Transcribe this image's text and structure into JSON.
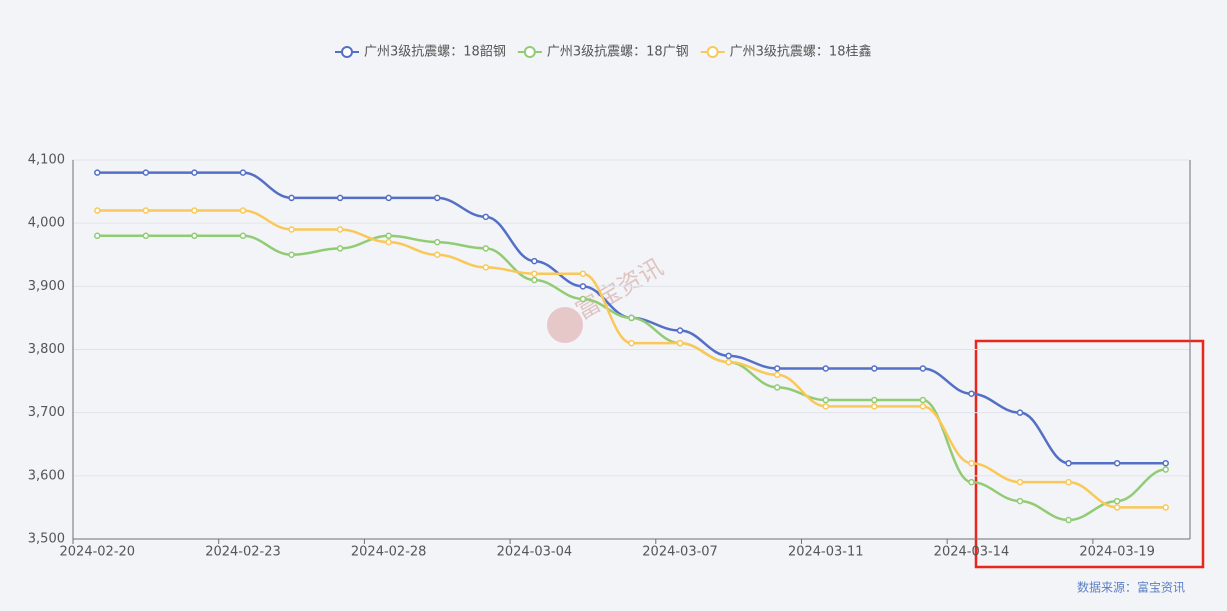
{
  "chart_data": {
    "type": "line",
    "categories": [
      "2024-02-20",
      null,
      null,
      "2024-02-23",
      null,
      null,
      "2024-02-28",
      null,
      null,
      "2024-03-04",
      null,
      null,
      "2024-03-07",
      null,
      null,
      "2024-03-11",
      null,
      null,
      "2024-03-14",
      null,
      null,
      "2024-03-19",
      null
    ],
    "series": [
      {
        "name": "广州3级抗震螺：18韶钢",
        "color": "#5470c6",
        "values": [
          4080,
          4080,
          4080,
          4080,
          4040,
          4040,
          4040,
          4040,
          4010,
          3940,
          3900,
          3850,
          3830,
          3790,
          3770,
          3770,
          3770,
          3770,
          3730,
          3700,
          3620,
          3620,
          3620
        ]
      },
      {
        "name": "广州3级抗震螺：18广钢",
        "color": "#91cc75",
        "values": [
          3980,
          3980,
          3980,
          3980,
          3950,
          3960,
          3980,
          3970,
          3960,
          3910,
          3880,
          3850,
          3810,
          3780,
          3740,
          3720,
          3720,
          3720,
          3590,
          3560,
          3530,
          3560,
          3610
        ]
      },
      {
        "name": "广州3级抗震螺：18桂鑫",
        "color": "#fac858",
        "values": [
          4020,
          4020,
          4020,
          4020,
          3990,
          3990,
          3970,
          3950,
          3930,
          3920,
          3920,
          3810,
          3810,
          3780,
          3760,
          3710,
          3710,
          3710,
          3620,
          3590,
          3590,
          3550,
          3550
        ]
      }
    ],
    "ylim": [
      3500,
      4100
    ],
    "yticks": [
      {
        "value": 3500,
        "label": "3,500"
      },
      {
        "value": 3600,
        "label": "3,600"
      },
      {
        "value": 3700,
        "label": "3,700"
      },
      {
        "value": 3800,
        "label": "3,800"
      },
      {
        "value": 3900,
        "label": "3,900"
      },
      {
        "value": 4000,
        "label": "4,000"
      },
      {
        "value": 4100,
        "label": "4,100"
      }
    ],
    "grid": true,
    "watermark": "富宝资讯",
    "source": "数据来源：富宝资讯"
  }
}
